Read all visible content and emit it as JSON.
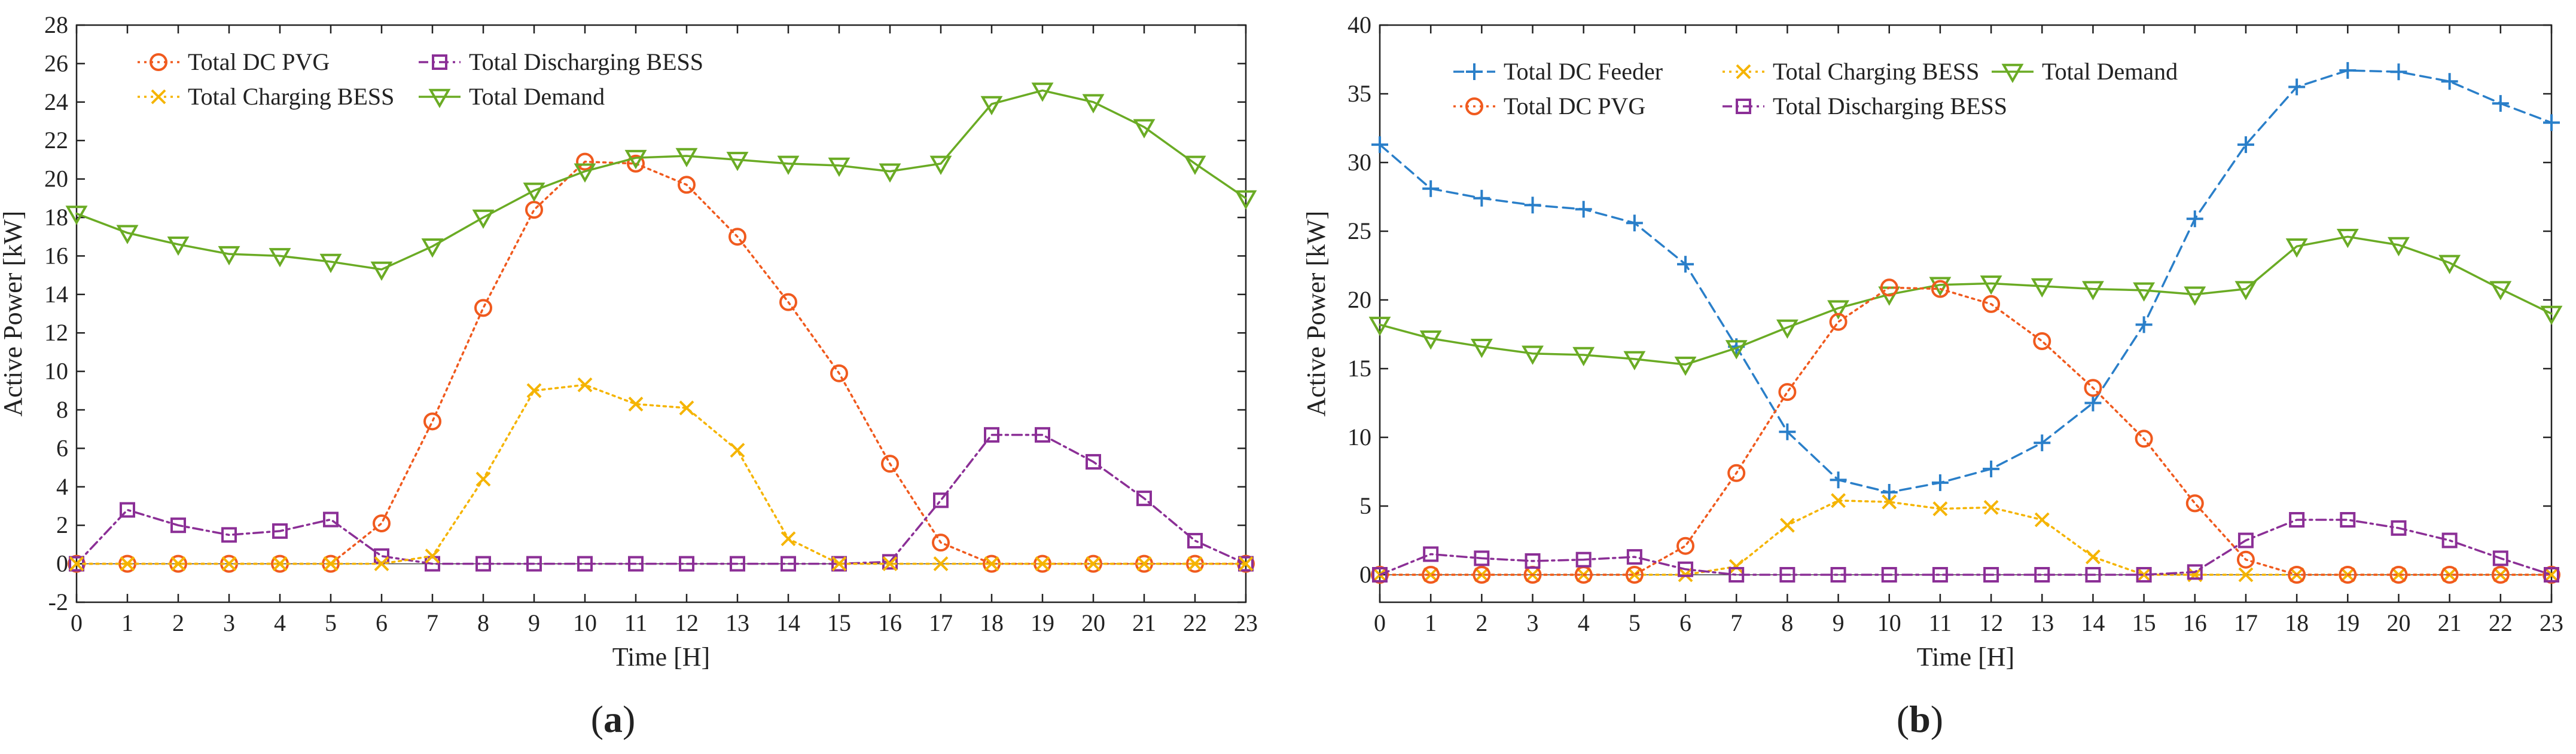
{
  "chart_data": [
    {
      "type": "line",
      "panel_label": "(a)",
      "xlabel": "Time [H]",
      "ylabel": "Active Power [kW]",
      "xlim": [
        0,
        23
      ],
      "ylim": [
        -2,
        28
      ],
      "yticks": [
        -2,
        0,
        2,
        4,
        6,
        8,
        10,
        12,
        14,
        16,
        18,
        20,
        22,
        24,
        26,
        28
      ],
      "x": [
        0,
        1,
        2,
        3,
        4,
        5,
        6,
        7,
        8,
        9,
        10,
        11,
        12,
        13,
        14,
        15,
        16,
        17,
        18,
        19,
        20,
        21,
        22,
        23
      ],
      "grid": false,
      "legend_position": "top-left",
      "series": [
        {
          "name": "Total DC PVG",
          "color": "#f05a1e",
          "marker": "circle",
          "dash": "dotted",
          "values": [
            0,
            0,
            0,
            0,
            0,
            0,
            2.1,
            7.4,
            13.3,
            18.4,
            20.9,
            20.8,
            19.7,
            17.0,
            13.6,
            9.9,
            5.2,
            1.1,
            0,
            0,
            0,
            0,
            0,
            0
          ]
        },
        {
          "name": "Total Discharging BESS",
          "color": "#8b2f96",
          "marker": "square",
          "dash": "dashdot",
          "values": [
            0,
            2.8,
            2.0,
            1.5,
            1.7,
            2.3,
            0.4,
            0,
            0,
            0,
            0,
            0,
            0,
            0,
            0,
            0,
            0.1,
            3.3,
            6.7,
            6.7,
            5.3,
            3.4,
            1.2,
            0
          ]
        },
        {
          "name": "Total Charging BESS",
          "color": "#f5b400",
          "marker": "x",
          "dash": "dotted",
          "values": [
            0,
            0,
            0,
            0,
            0,
            0,
            0,
            0.4,
            4.4,
            9.0,
            9.3,
            8.3,
            8.1,
            5.9,
            1.3,
            0,
            0,
            0,
            0,
            0,
            0,
            0,
            0,
            0
          ]
        },
        {
          "name": "Total Demand",
          "color": "#6aab24",
          "marker": "triangle-down",
          "dash": "solid",
          "values": [
            18.2,
            17.2,
            16.6,
            16.1,
            16.0,
            15.7,
            15.3,
            16.5,
            18.0,
            19.4,
            20.4,
            21.1,
            21.2,
            21.0,
            20.8,
            20.7,
            20.4,
            20.8,
            23.9,
            24.6,
            24.0,
            22.7,
            20.8,
            19.0
          ]
        }
      ],
      "legend_layout": [
        [
          0,
          1
        ],
        [
          2,
          3
        ]
      ]
    },
    {
      "type": "line",
      "panel_label": "(b)",
      "xlabel": "Time [H]",
      "ylabel": "Active Power [kW]",
      "xlim": [
        0,
        23
      ],
      "ylim": [
        -2,
        40
      ],
      "yticks": [
        0,
        5,
        10,
        15,
        20,
        25,
        30,
        35,
        40
      ],
      "x": [
        0,
        1,
        2,
        3,
        4,
        5,
        6,
        7,
        8,
        9,
        10,
        11,
        12,
        13,
        14,
        15,
        16,
        17,
        18,
        19,
        20,
        21,
        22,
        23
      ],
      "grid": false,
      "legend_position": "top-left",
      "series": [
        {
          "name": "Total DC Feeder",
          "color": "#2a7fc9",
          "marker": "plus",
          "dash": "dashed",
          "values": [
            31.3,
            28.1,
            27.4,
            26.9,
            26.6,
            25.6,
            22.6,
            16.6,
            10.4,
            6.9,
            6.0,
            6.7,
            7.7,
            9.6,
            12.5,
            18.2,
            25.9,
            31.3,
            35.5,
            36.7,
            36.6,
            35.9,
            34.3,
            32.9
          ]
        },
        {
          "name": "Total Charging BESS",
          "color": "#f5b400",
          "marker": "x",
          "dash": "dotted",
          "values": [
            0,
            0,
            0,
            0,
            0,
            0,
            0,
            0.6,
            3.6,
            5.4,
            5.3,
            4.8,
            4.9,
            4.0,
            1.3,
            0,
            0,
            0,
            0,
            0,
            0,
            0,
            0,
            0
          ]
        },
        {
          "name": "Total Demand",
          "color": "#6aab24",
          "marker": "triangle-down",
          "dash": "solid",
          "values": [
            18.2,
            17.2,
            16.6,
            16.1,
            16.0,
            15.7,
            15.3,
            16.5,
            18.0,
            19.4,
            20.4,
            21.1,
            21.2,
            21.0,
            20.8,
            20.7,
            20.4,
            20.8,
            23.9,
            24.6,
            24.0,
            22.7,
            20.8,
            19.0
          ]
        },
        {
          "name": "Total DC PVG",
          "color": "#f05a1e",
          "marker": "circle",
          "dash": "dotted",
          "values": [
            0,
            0,
            0,
            0,
            0,
            0,
            2.1,
            7.4,
            13.3,
            18.4,
            20.9,
            20.8,
            19.7,
            17.0,
            13.6,
            9.9,
            5.2,
            1.1,
            0,
            0,
            0,
            0,
            0,
            0
          ]
        },
        {
          "name": "Total Discharging BESS",
          "color": "#8b2f96",
          "marker": "square",
          "dash": "dashdot",
          "values": [
            0,
            1.5,
            1.2,
            1.0,
            1.1,
            1.3,
            0.4,
            0,
            0,
            0,
            0,
            0,
            0,
            0,
            0,
            0,
            0.2,
            2.5,
            4.0,
            4.0,
            3.4,
            2.5,
            1.2,
            0
          ]
        }
      ],
      "legend_layout": [
        [
          0,
          1,
          2
        ],
        [
          3,
          4
        ]
      ]
    }
  ]
}
